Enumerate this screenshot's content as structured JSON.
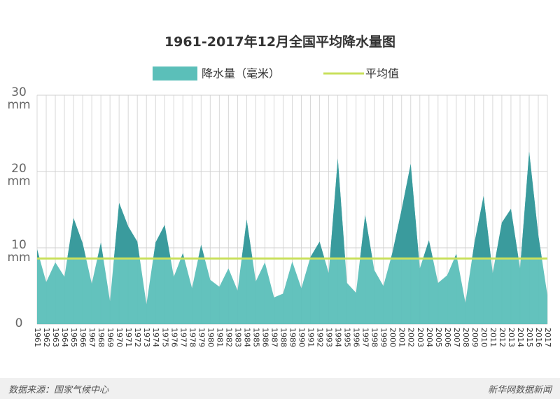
{
  "chart_data": {
    "type": "area",
    "title": "1961-2017年12月全国平均降水量图",
    "categories": [
      "1961",
      "1962",
      "1963",
      "1964",
      "1965",
      "1966",
      "1967",
      "1968",
      "1969",
      "1970",
      "1971",
      "1972",
      "1973",
      "1974",
      "1975",
      "1976",
      "1977",
      "1978",
      "1979",
      "1980",
      "1981",
      "1982",
      "1983",
      "1984",
      "1985",
      "1986",
      "1987",
      "1988",
      "1989",
      "1990",
      "1991",
      "1992",
      "1993",
      "1994",
      "1995",
      "1996",
      "1997",
      "1998",
      "1999",
      "2000",
      "2001",
      "2002",
      "2003",
      "2004",
      "2005",
      "2006",
      "2007",
      "2008",
      "2009",
      "2010",
      "2011",
      "2012",
      "2013",
      "2014",
      "2015",
      "2016",
      "2017"
    ],
    "series": [
      {
        "name": "降水量（毫米）",
        "color": "#5bbfb9",
        "color_above_average": "#3a9b9d",
        "values": [
          9.8,
          5.5,
          8.1,
          6.2,
          13.9,
          10.6,
          5.3,
          10.7,
          3.0,
          15.9,
          12.8,
          10.8,
          2.6,
          10.7,
          13.0,
          6.2,
          9.3,
          4.7,
          10.4,
          5.8,
          4.9,
          7.3,
          4.4,
          13.7,
          5.6,
          8.1,
          3.5,
          4.0,
          8.2,
          4.7,
          8.8,
          10.8,
          6.7,
          21.7,
          5.4,
          4.1,
          14.3,
          7.1,
          5.0,
          9.4,
          15.0,
          21.0,
          7.3,
          11.0,
          5.4,
          6.4,
          9.2,
          2.8,
          10.7,
          16.8,
          6.7,
          13.3,
          15.1,
          7.3,
          22.6,
          11.7,
          3.8
        ]
      }
    ],
    "average": {
      "name": "平均值",
      "value": 8.6,
      "color": "#c9e05c"
    },
    "ylim": [
      0,
      30
    ],
    "yticks": [
      0,
      {
        "value": 10,
        "label": "10\nmm"
      },
      {
        "value": 20,
        "label": "20\nmm"
      },
      {
        "value": 30,
        "label": "30\nmm"
      }
    ],
    "grid": true,
    "source": "数据来源：国家气候中心",
    "credit": "新华网数据新闻"
  }
}
